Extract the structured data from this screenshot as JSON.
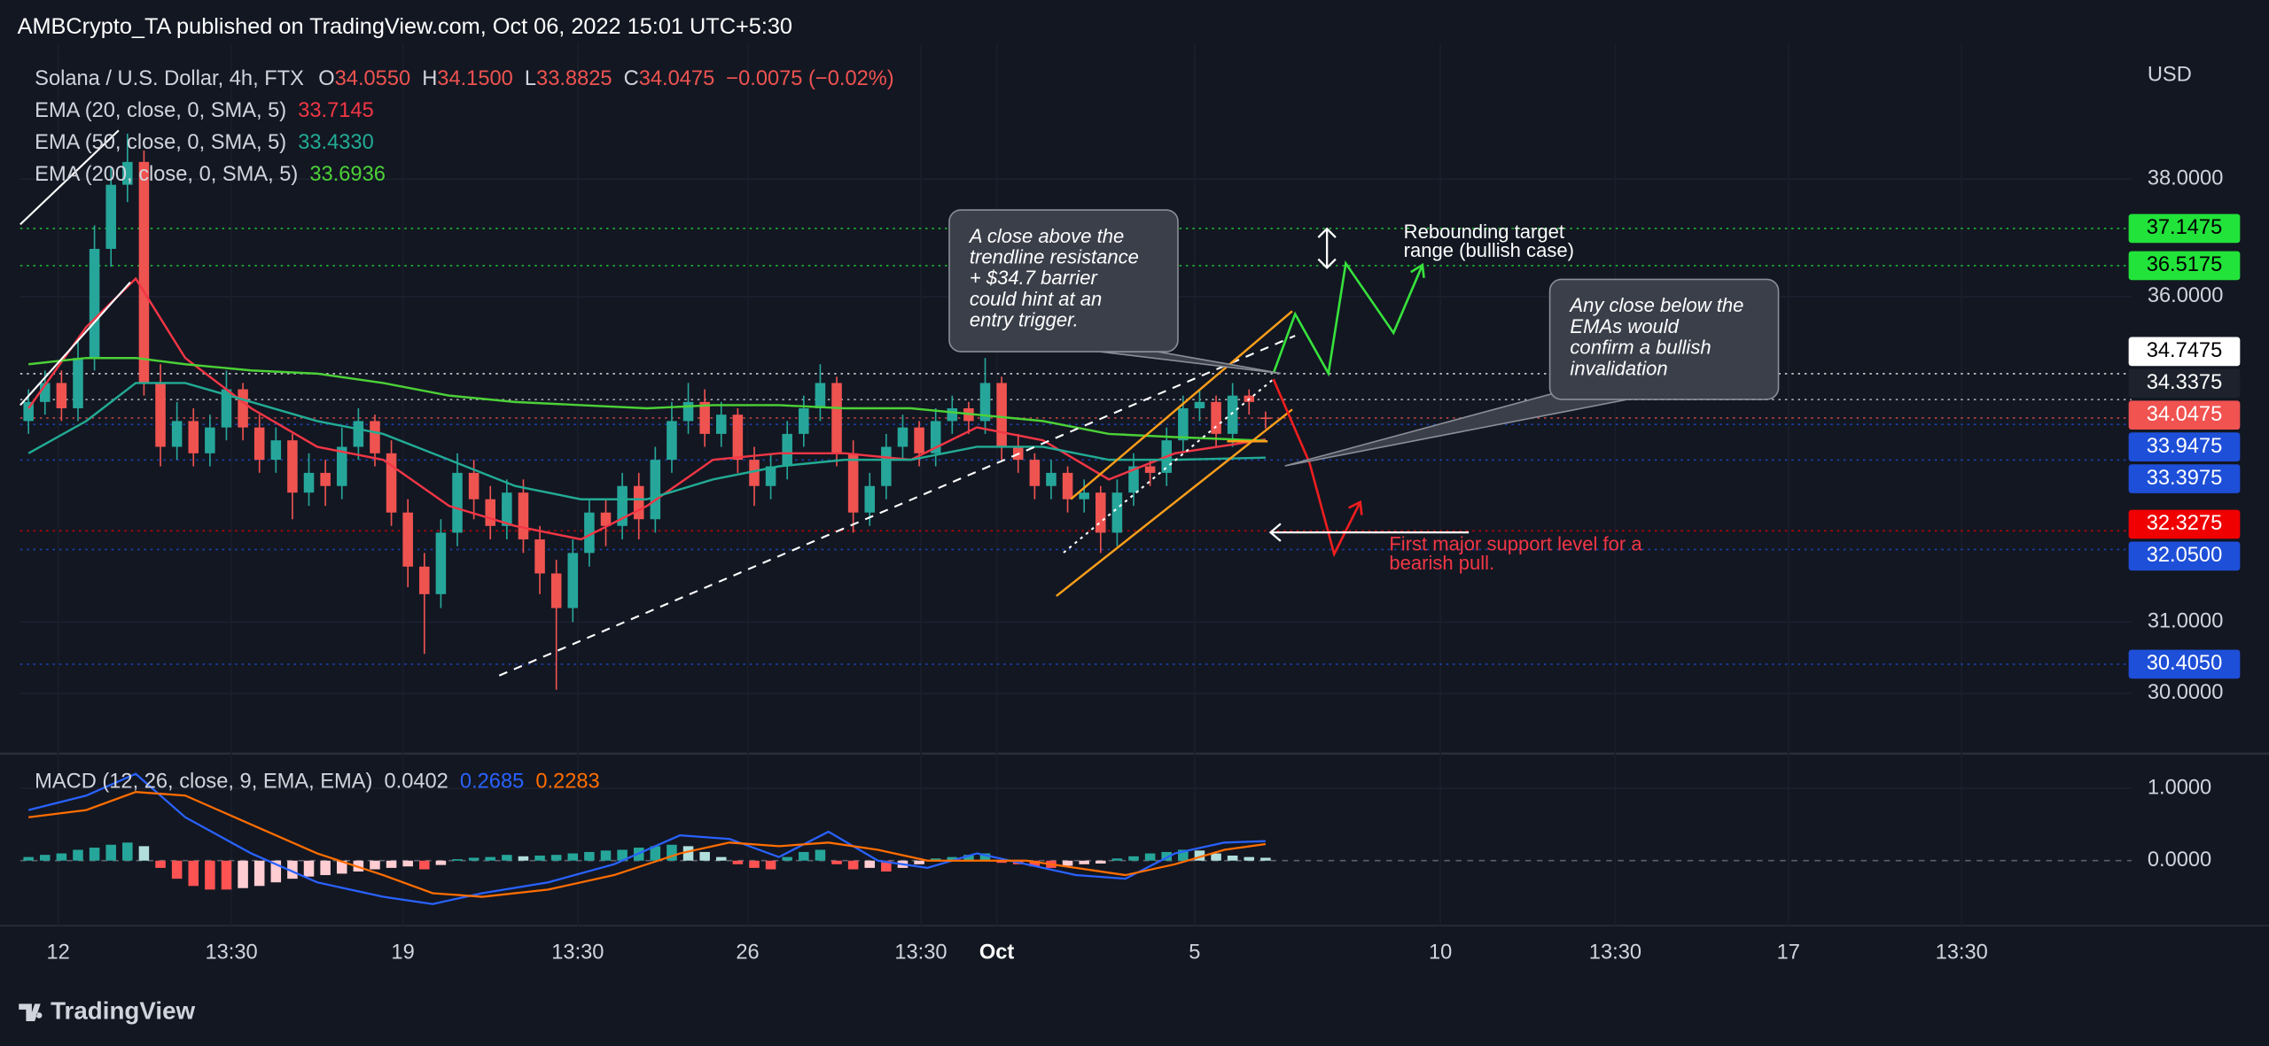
{
  "header": {
    "title": "AMBCrypto_TA published on TradingView.com, Oct 06, 2022 15:01 UTC+5:30"
  },
  "footer": {
    "brand": "TradingView"
  },
  "chart_data": [
    {
      "type": "candlestick",
      "title": "Solana / U.S. Dollar, 4h, FTX",
      "currency": "USD",
      "ohlc_labels": [
        "O",
        "H",
        "L",
        "C"
      ],
      "ohlc_values": [
        34.055,
        34.15,
        33.8825,
        34.0475
      ],
      "ohlc_value_labels": [
        "34.0550",
        "34.1500",
        "33.8825",
        "34.0475"
      ],
      "change": "−0.0075 (−0.02%)",
      "up_color": "#26a69a",
      "down_color": "#ef5350",
      "log": true,
      "grid": true,
      "xlim": [
        0,
        128
      ],
      "ylim": [
        29.2,
        40.44
      ],
      "yticks": [
        {
          "value": 30,
          "label": "30.0000"
        },
        {
          "value": 31,
          "label": "31.0000"
        },
        {
          "value": 36,
          "label": "36.0000"
        },
        {
          "value": 38,
          "label": "38.0000"
        }
      ],
      "xticks": [
        {
          "value": 2.3,
          "label": "12"
        },
        {
          "value": 12.8,
          "label": "13:30"
        },
        {
          "value": 23.2,
          "label": "19"
        },
        {
          "value": 33.8,
          "label": "13:30"
        },
        {
          "value": 44.1,
          "label": "26"
        },
        {
          "value": 54.6,
          "label": "13:30"
        },
        {
          "value": 59.2,
          "label": "Oct"
        },
        {
          "value": 71.2,
          "label": "5"
        },
        {
          "value": 86.1,
          "label": "10"
        },
        {
          "value": 96.7,
          "label": "13:30"
        },
        {
          "value": 107.2,
          "label": "17"
        },
        {
          "value": 117.7,
          "label": "13:30"
        }
      ],
      "open": [
        34.0,
        34.3,
        34.6,
        34.2,
        35.0,
        36.8,
        37.9,
        38.3,
        34.6,
        33.6,
        34.0,
        33.5,
        33.9,
        34.5,
        33.9,
        33.4,
        33.7,
        32.9,
        33.2,
        33.0,
        33.6,
        34.0,
        33.5,
        32.6,
        31.8,
        31.4,
        32.3,
        33.2,
        32.8,
        32.4,
        32.9,
        32.2,
        31.7,
        31.2,
        32.0,
        32.6,
        32.4,
        33.0,
        32.5,
        33.4,
        34.0,
        34.3,
        33.8,
        34.1,
        33.4,
        33.0,
        33.3,
        33.8,
        34.2,
        34.6,
        33.5,
        32.6,
        33.0,
        33.6,
        33.9,
        33.5,
        34.0,
        34.2,
        34.0,
        34.6,
        33.6,
        33.4,
        33.0,
        33.2,
        32.8,
        32.9,
        32.3,
        32.9,
        33.3,
        33.2,
        33.7,
        34.2,
        34.3,
        33.8,
        34.4,
        34.055
      ],
      "high": [
        34.5,
        34.8,
        34.8,
        35.3,
        37.2,
        38.2,
        38.8,
        38.5,
        34.9,
        34.3,
        34.2,
        34.1,
        34.8,
        34.6,
        34.1,
        33.9,
        33.8,
        33.5,
        33.4,
        33.9,
        34.2,
        34.1,
        33.7,
        32.8,
        32.0,
        32.5,
        33.5,
        33.4,
        33.0,
        33.1,
        33.1,
        32.4,
        31.9,
        32.2,
        32.8,
        32.8,
        33.2,
        33.2,
        33.6,
        34.3,
        34.6,
        34.5,
        34.3,
        34.2,
        33.6,
        33.5,
        34.0,
        34.4,
        34.9,
        34.7,
        33.7,
        33.2,
        33.8,
        34.1,
        34.0,
        34.2,
        34.4,
        34.3,
        35.0,
        34.7,
        33.8,
        33.5,
        33.4,
        33.3,
        33.1,
        33.0,
        33.1,
        33.5,
        33.4,
        33.9,
        34.4,
        34.5,
        34.4,
        34.6,
        34.5,
        34.15
      ],
      "low": [
        33.8,
        34.1,
        34.0,
        34.0,
        34.8,
        36.5,
        37.6,
        34.4,
        33.3,
        33.4,
        33.3,
        33.3,
        33.7,
        33.7,
        33.2,
        33.2,
        32.5,
        32.7,
        32.7,
        32.8,
        33.4,
        33.3,
        32.4,
        31.5,
        30.55,
        31.2,
        32.1,
        32.5,
        32.2,
        32.2,
        32.0,
        31.4,
        30.05,
        31.0,
        31.8,
        32.1,
        32.2,
        32.2,
        32.3,
        33.2,
        33.8,
        33.6,
        33.6,
        33.2,
        32.7,
        32.8,
        33.1,
        33.6,
        34.0,
        33.3,
        32.3,
        32.4,
        32.8,
        33.4,
        33.3,
        33.3,
        33.8,
        33.8,
        33.8,
        33.4,
        33.2,
        32.8,
        32.8,
        32.6,
        32.6,
        32.0,
        32.1,
        32.7,
        33.0,
        33.0,
        33.5,
        34.0,
        33.6,
        33.6,
        34.1,
        33.8825
      ],
      "close": [
        34.3,
        34.6,
        34.2,
        35.0,
        36.8,
        37.9,
        38.3,
        34.6,
        33.6,
        34.0,
        33.5,
        33.9,
        34.5,
        33.9,
        33.4,
        33.7,
        32.9,
        33.2,
        33.0,
        33.6,
        34.0,
        33.5,
        32.6,
        31.8,
        31.4,
        32.3,
        33.2,
        32.8,
        32.4,
        32.9,
        32.2,
        31.7,
        31.2,
        32.0,
        32.6,
        32.4,
        33.0,
        32.5,
        33.4,
        34.0,
        34.3,
        33.8,
        34.1,
        33.4,
        33.0,
        33.3,
        33.8,
        34.2,
        34.6,
        33.5,
        32.6,
        33.0,
        33.6,
        33.9,
        33.5,
        34.0,
        34.2,
        34.0,
        34.6,
        33.6,
        33.4,
        33.0,
        33.2,
        32.8,
        32.9,
        32.3,
        32.9,
        33.3,
        33.2,
        33.7,
        34.2,
        34.3,
        33.8,
        34.4,
        34.3,
        34.0475
      ],
      "series": [
        {
          "name": "EMA (20, close, 0, SMA, 5)",
          "color": "#f23645",
          "last": 33.7145,
          "last_label": "33.7145",
          "x": [
            0.5,
            4,
            7,
            10,
            14,
            18,
            22,
            26,
            30,
            34,
            38,
            42,
            46,
            50,
            54,
            58,
            62,
            66,
            70,
            75.5
          ],
          "values": [
            34.2,
            35.5,
            36.3,
            35.0,
            34.2,
            33.6,
            33.4,
            32.7,
            32.4,
            32.2,
            32.7,
            33.4,
            33.5,
            33.5,
            33.4,
            33.9,
            33.7,
            33.1,
            33.5,
            33.7145
          ]
        },
        {
          "name": "EMA (50, close, 0, SMA, 5)",
          "color": "#22ab94",
          "last": 33.433,
          "last_label": "33.4330",
          "x": [
            0.5,
            4,
            7,
            10,
            14,
            18,
            22,
            26,
            30,
            34,
            38,
            42,
            46,
            50,
            54,
            58,
            62,
            66,
            70,
            75.5
          ],
          "values": [
            33.5,
            34.0,
            34.6,
            34.6,
            34.3,
            34.0,
            33.8,
            33.4,
            33.0,
            32.8,
            32.8,
            33.1,
            33.3,
            33.4,
            33.4,
            33.6,
            33.6,
            33.4,
            33.4,
            33.433
          ]
        },
        {
          "name": "EMA (200, close, 0, SMA, 5)",
          "color": "#4cd137",
          "last": 33.6936,
          "last_label": "33.6936",
          "x": [
            0.5,
            4,
            7,
            10,
            14,
            18,
            22,
            26,
            30,
            34,
            38,
            42,
            46,
            50,
            54,
            58,
            62,
            66,
            70,
            75.5
          ],
          "values": [
            34.9,
            35.0,
            35.0,
            34.9,
            34.8,
            34.75,
            34.6,
            34.4,
            34.3,
            34.25,
            34.2,
            34.25,
            34.25,
            34.2,
            34.2,
            34.1,
            34.0,
            33.8,
            33.75,
            33.6936
          ]
        }
      ],
      "levels": [
        {
          "value": 37.1475,
          "label": "37.1475",
          "color": "#22e33a",
          "text_color": "#000000"
        },
        {
          "value": 36.5175,
          "label": "36.5175",
          "color": "#22e33a",
          "text_color": "#000000"
        },
        {
          "value": 34.7475,
          "label": "34.7475",
          "color": "#ffffff",
          "text_color": "#000000"
        },
        {
          "value": 34.3375,
          "label": "34.3375",
          "color": "#d1d4dc",
          "text_color": "#ffffff"
        },
        {
          "value": 34.0475,
          "label": "34.0475",
          "color": "#f05350",
          "text_color": "#ffffff"
        },
        {
          "value": 33.9475,
          "label": "33.9475",
          "color": "#1e4fd8",
          "text_color": "#ffffff"
        },
        {
          "value": 33.3975,
          "label": "33.3975",
          "color": "#1e4fd8",
          "text_color": "#ffffff"
        },
        {
          "value": 32.3275,
          "label": "32.3275",
          "color": "#f00000",
          "text_color": "#ffffff"
        },
        {
          "value": 32.05,
          "label": "32.0500",
          "color": "#1e4fd8",
          "text_color": "#ffffff"
        },
        {
          "value": 30.405,
          "label": "30.4050",
          "color": "#1e4fd8",
          "text_color": "#ffffff"
        }
      ],
      "annotations": [
        {
          "lines": [
            "A close above the",
            "trendline resistance",
            "+ $34.7 barrier",
            "could hint at an",
            "entry trigger."
          ],
          "color": "#ffffff"
        },
        {
          "lines": [
            "Any close below the",
            "EMAs would",
            "confirm a bullish",
            "invalidation"
          ],
          "color": "#ffffff"
        },
        {
          "lines": [
            "Rebounding target",
            "range (bullish case)"
          ],
          "color": "#ffffff"
        },
        {
          "lines": [
            "First major support level for a",
            "bearish pull."
          ],
          "color": "#f23645"
        }
      ]
    },
    {
      "type": "macd",
      "title": "MACD (12, 26, close, 9, EMA, EMA)",
      "legend_values": [
        0.0402,
        0.2685,
        0.2283
      ],
      "legend_value_labels": [
        "0.0402",
        "0.2685",
        "0.2283"
      ],
      "legend_colors": [
        "#d1d4dc",
        "#2962ff",
        "#ff6d00"
      ],
      "xlim": [
        0,
        128
      ],
      "ylim": [
        -1.0,
        1.46
      ],
      "yticks": [
        {
          "value": 0,
          "label": "0.0000"
        },
        {
          "value": 1,
          "label": "1.0000"
        }
      ],
      "histogram_colors": [
        "#26a69a",
        "#b2dfdb",
        "#ff5252",
        "#ffcdd2"
      ],
      "histogram": [
        0.05,
        0.08,
        0.1,
        0.15,
        0.18,
        0.22,
        0.25,
        0.2,
        -0.1,
        -0.25,
        -0.35,
        -0.4,
        -0.4,
        -0.38,
        -0.35,
        -0.3,
        -0.25,
        -0.22,
        -0.2,
        -0.18,
        -0.15,
        -0.12,
        -0.1,
        -0.08,
        -0.12,
        -0.06,
        0.02,
        0.04,
        0.05,
        0.08,
        0.06,
        0.07,
        0.08,
        0.1,
        0.12,
        0.14,
        0.15,
        0.18,
        0.2,
        0.22,
        0.2,
        0.12,
        0.05,
        -0.05,
        -0.1,
        -0.12,
        0.05,
        0.12,
        0.15,
        -0.05,
        -0.12,
        -0.1,
        -0.15,
        -0.1,
        -0.05,
        0.03,
        0.05,
        0.08,
        0.1,
        -0.03,
        -0.05,
        -0.08,
        -0.1,
        -0.07,
        -0.05,
        -0.04,
        0.03,
        0.06,
        0.1,
        0.12,
        0.15,
        0.14,
        0.1,
        0.07,
        0.05,
        0.04
      ],
      "series": [
        {
          "color": "#2962ff",
          "x": [
            0.5,
            4,
            7,
            10,
            14,
            18,
            22,
            25,
            28,
            32,
            36,
            40,
            43,
            46,
            49,
            52,
            55,
            58,
            61,
            64,
            67,
            70,
            73,
            75.5
          ],
          "values": [
            0.7,
            0.9,
            1.2,
            0.6,
            0.1,
            -0.3,
            -0.5,
            -0.6,
            -0.45,
            -0.3,
            -0.05,
            0.35,
            0.3,
            0.05,
            0.4,
            0.0,
            -0.1,
            0.1,
            -0.05,
            -0.2,
            -0.25,
            0.1,
            0.25,
            0.27
          ]
        },
        {
          "color": "#ff6d00",
          "x": [
            0.5,
            4,
            7,
            10,
            14,
            18,
            22,
            25,
            28,
            32,
            36,
            40,
            43,
            46,
            49,
            52,
            55,
            58,
            61,
            64,
            67,
            70,
            73,
            75.5
          ],
          "values": [
            0.6,
            0.7,
            0.95,
            0.9,
            0.5,
            0.1,
            -0.2,
            -0.45,
            -0.5,
            -0.4,
            -0.2,
            0.1,
            0.25,
            0.2,
            0.25,
            0.15,
            0.0,
            0.0,
            0.0,
            -0.1,
            -0.2,
            -0.05,
            0.15,
            0.23
          ]
        }
      ]
    }
  ]
}
